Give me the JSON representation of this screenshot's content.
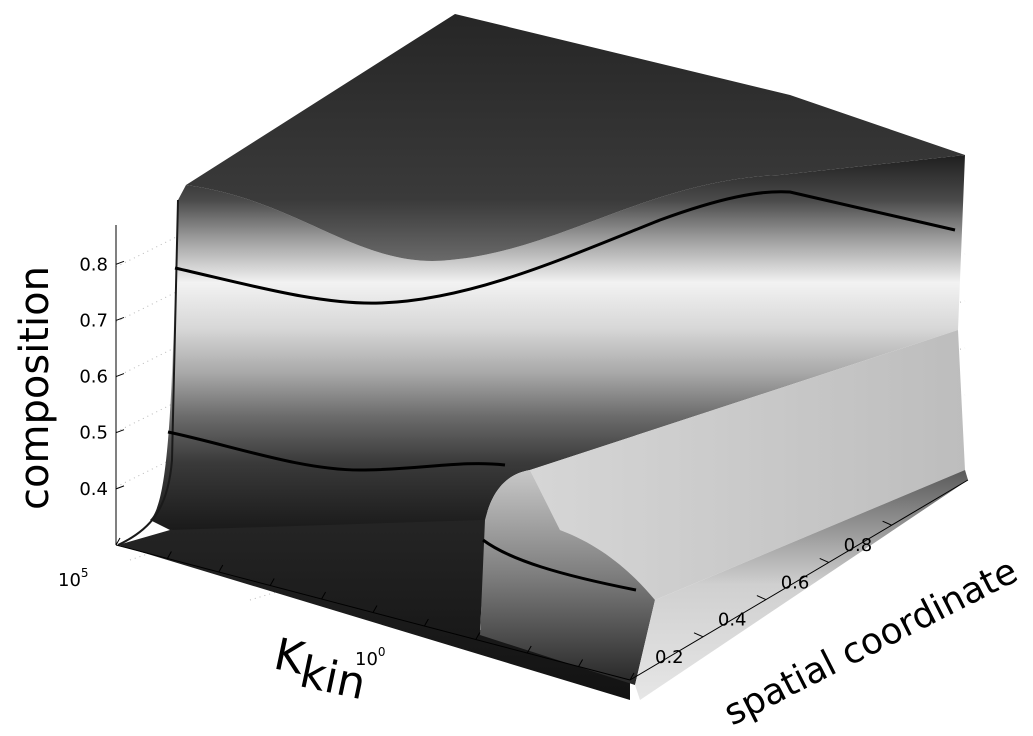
{
  "chart_data": {
    "type": "surface3d",
    "zlabel": "composition",
    "xlabel_main": "K",
    "xlabel_sub": "kin",
    "ylabel": "spatial coordinate",
    "z_ticks": [
      "0.4",
      "0.5",
      "0.6",
      "0.7",
      "0.8"
    ],
    "y_ticks": [
      "0.2",
      "0.4",
      "0.6",
      "0.8"
    ],
    "x_ticks": [
      {
        "base": "10",
        "exp": "5"
      },
      {
        "base": "10",
        "exp": "0"
      }
    ],
    "x_scale": "log",
    "zlim": [
      0.3,
      0.87
    ],
    "ylim": [
      0,
      1
    ],
    "grid": true,
    "colormap": "gray",
    "contour_levels": [
      0.5,
      0.8
    ]
  }
}
